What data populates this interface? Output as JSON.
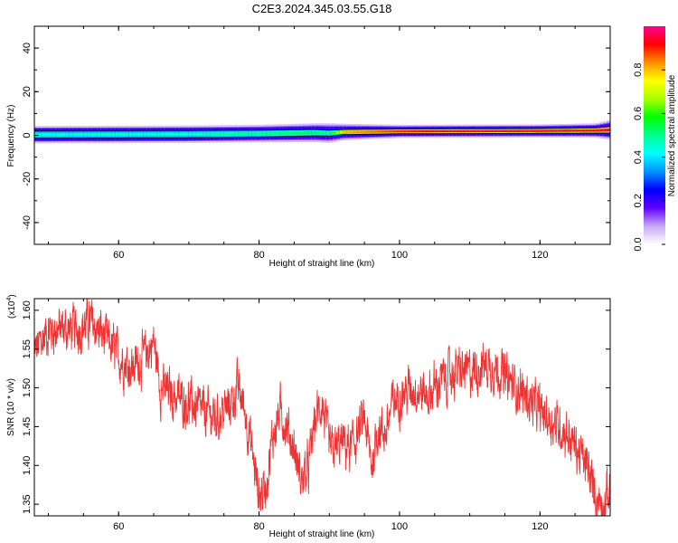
{
  "title": "C2E3.2024.345.03.55.G18",
  "chart_data": [
    {
      "type": "heatmap",
      "xlabel": "Height of straight line (km)",
      "ylabel": "Frequency (Hz)",
      "xlim": [
        48,
        130
      ],
      "ylim": [
        -50,
        50
      ],
      "x_ticks": [
        "60",
        "80",
        "100",
        "120"
      ],
      "y_ticks": [
        "40",
        "20",
        "0",
        "-20",
        "-40"
      ],
      "ridge": {
        "x": [
          48,
          60,
          70,
          80,
          88,
          90,
          92,
          100,
          110,
          120,
          128,
          130
        ],
        "center_frequency": [
          0.3,
          0.4,
          0.5,
          0.8,
          1.2,
          1.0,
          1.5,
          1.8,
          1.9,
          2.0,
          2.2,
          2.5
        ],
        "core_half_width": [
          1.8,
          1.8,
          1.8,
          1.6,
          1.5,
          1.4,
          1.2,
          1.1,
          1.1,
          1.1,
          1.2,
          1.5
        ],
        "halo_half_width": [
          4.0,
          4.0,
          4.0,
          4.0,
          4.3,
          4.5,
          3.8,
          3.0,
          3.0,
          3.0,
          3.3,
          4.5
        ],
        "peak_amplitude": [
          0.45,
          0.45,
          0.45,
          0.5,
          0.55,
          0.5,
          0.8,
          0.9,
          0.95,
          0.95,
          0.95,
          0.95
        ]
      },
      "colorbar": {
        "label": "Normalized spectral amplitude",
        "range": [
          0,
          1
        ],
        "ticks": [
          "0.0",
          "0.2",
          "0.4",
          "0.6",
          "0.8"
        ],
        "colors": [
          "#ffffff",
          "#c9a9f5",
          "#6000ff",
          "#0000ff",
          "#0090ff",
          "#00ffff",
          "#00ff90",
          "#00ff00",
          "#aaff00",
          "#ffff00",
          "#ff9000",
          "#ff0000",
          "#ff0090"
        ]
      }
    },
    {
      "type": "line",
      "xlabel": "Height of straight line (km)",
      "ylabel": "SNR (10 * v/v)",
      "scale_label": "(x10",
      "scale_exponent": "4",
      "scale_suffix": ")",
      "xlim": [
        48,
        130
      ],
      "ylim": [
        1.335,
        1.615
      ],
      "x_ticks": [
        "60",
        "80",
        "100",
        "120"
      ],
      "y_ticks": [
        "1.35",
        "1.40",
        "1.45",
        "1.50",
        "1.55",
        "1.60"
      ],
      "series": [
        {
          "color": "#ee3333",
          "x": [
            48,
            50,
            52,
            54,
            56,
            58,
            60,
            62,
            64,
            65,
            66,
            68,
            70,
            72,
            74,
            76,
            77,
            78,
            79,
            80,
            81,
            82,
            83,
            84,
            85,
            86,
            87,
            88,
            89,
            90,
            91,
            92,
            93,
            94,
            95,
            96,
            97,
            98,
            99,
            100,
            102,
            104,
            106,
            108,
            110,
            112,
            114,
            116,
            118,
            120,
            122,
            124,
            126,
            127,
            128,
            129,
            130
          ],
          "y": [
            1.545,
            1.575,
            1.575,
            1.575,
            1.585,
            1.565,
            1.54,
            1.525,
            1.545,
            1.56,
            1.5,
            1.49,
            1.48,
            1.47,
            1.46,
            1.48,
            1.5,
            1.47,
            1.42,
            1.36,
            1.375,
            1.44,
            1.47,
            1.45,
            1.42,
            1.38,
            1.395,
            1.46,
            1.48,
            1.42,
            1.42,
            1.43,
            1.42,
            1.44,
            1.46,
            1.4,
            1.45,
            1.44,
            1.48,
            1.49,
            1.5,
            1.49,
            1.51,
            1.52,
            1.52,
            1.53,
            1.525,
            1.505,
            1.49,
            1.47,
            1.455,
            1.44,
            1.41,
            1.39,
            1.36,
            1.35,
            1.37
          ]
        }
      ]
    }
  ]
}
